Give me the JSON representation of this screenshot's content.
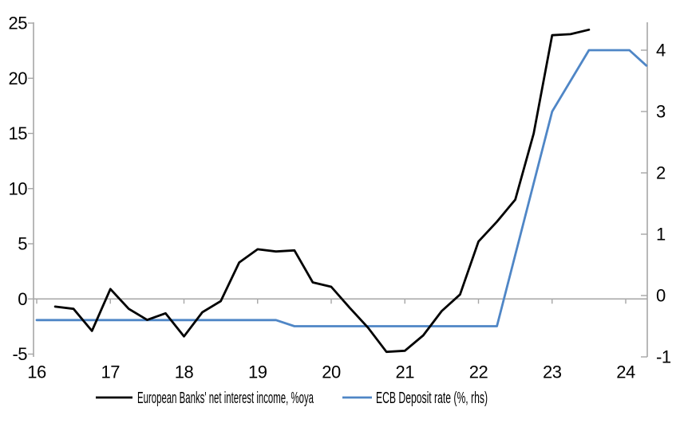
{
  "chart_data": {
    "type": "line",
    "title": "",
    "legend_position": "bottom",
    "grid": "zero-line-only",
    "x_axis": {
      "tick_values": [
        16,
        17,
        18,
        19,
        20,
        21,
        22,
        23,
        24
      ],
      "tick_labels": [
        "16",
        "17",
        "18",
        "19",
        "20",
        "21",
        "22",
        "23",
        "24"
      ],
      "range": [
        16,
        24.29
      ]
    },
    "left_axis": {
      "tick_values": [
        25,
        20,
        15,
        10,
        5,
        0,
        -5
      ],
      "tick_labels": [
        "25",
        "20",
        "15",
        "10",
        "5",
        "0",
        "-5"
      ],
      "range": [
        -5,
        25
      ]
    },
    "right_axis": {
      "tick_values": [
        4,
        3,
        2,
        1,
        0,
        -1
      ],
      "tick_labels": [
        "4",
        "3",
        "2",
        "1",
        "0",
        "-1"
      ],
      "range": [
        -1,
        4.47
      ]
    },
    "axis_color": "#A6A6A6",
    "zero_gridline_color": "#A6A6A6",
    "series": [
      {
        "id": "nii",
        "label": "European Banks' net interest income, %oya",
        "axis": "left",
        "color": "#000000",
        "points": [
          [
            16.25,
            -0.7
          ],
          [
            16.5,
            -0.9
          ],
          [
            16.75,
            -2.9
          ],
          [
            17.0,
            0.9
          ],
          [
            17.25,
            -0.9
          ],
          [
            17.5,
            -1.9
          ],
          [
            17.75,
            -1.3
          ],
          [
            18.0,
            -3.4
          ],
          [
            18.25,
            -1.2
          ],
          [
            18.5,
            -0.2
          ],
          [
            18.75,
            3.3
          ],
          [
            19.0,
            4.5
          ],
          [
            19.25,
            4.3
          ],
          [
            19.5,
            4.4
          ],
          [
            19.75,
            1.5
          ],
          [
            20.0,
            1.1
          ],
          [
            20.25,
            -0.8
          ],
          [
            20.5,
            -2.6
          ],
          [
            20.75,
            -4.8
          ],
          [
            21.0,
            -4.7
          ],
          [
            21.25,
            -3.3
          ],
          [
            21.5,
            -1.1
          ],
          [
            21.75,
            0.4
          ],
          [
            22.0,
            5.2
          ],
          [
            22.25,
            7.0
          ],
          [
            22.5,
            9.0
          ],
          [
            22.75,
            15.0
          ],
          [
            23.0,
            23.9
          ],
          [
            23.25,
            24.0
          ],
          [
            23.5,
            24.4
          ]
        ]
      },
      {
        "id": "ecb",
        "label": "ECB Deposit rate (%, rhs)",
        "axis": "right",
        "color": "#4F86C6",
        "points": [
          [
            16.0,
            -0.4
          ],
          [
            19.25,
            -0.4
          ],
          [
            19.5,
            -0.5
          ],
          [
            22.25,
            -0.5
          ],
          [
            23.0,
            3.0
          ],
          [
            23.5,
            4.0
          ],
          [
            24.05,
            4.0
          ],
          [
            24.28,
            3.75
          ]
        ]
      }
    ]
  }
}
